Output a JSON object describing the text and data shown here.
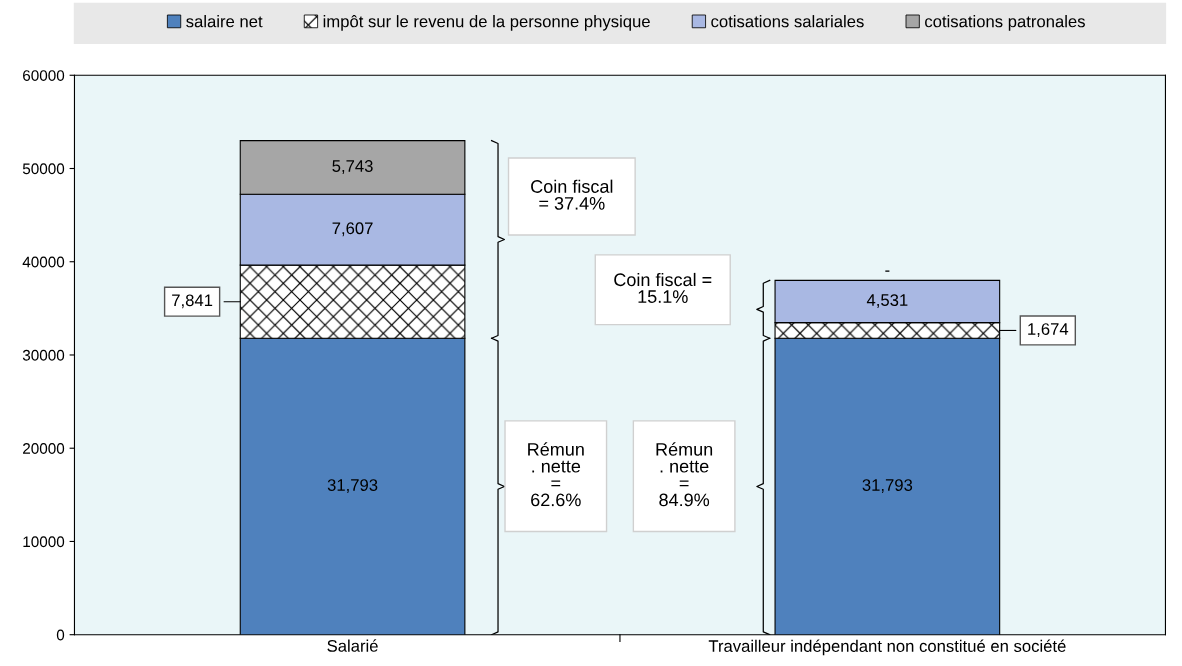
{
  "chart_data": {
    "type": "bar",
    "stacked": true,
    "categories": [
      "Salarié",
      "Travailleur indépendant non constitué en société"
    ],
    "series": [
      {
        "name": "salaire net",
        "color": "#4f81bd",
        "values": [
          31793,
          31793
        ],
        "value_labels": [
          "31,793",
          "31,793"
        ]
      },
      {
        "name": "impôt sur le revenu de la personne physique",
        "color": "#000000",
        "values": [
          7841,
          1674
        ],
        "value_labels": [
          "7,841",
          "1,674"
        ]
      },
      {
        "name": "cotisations salariales",
        "color": "#a9b8e3",
        "values": [
          7607,
          4531
        ],
        "value_labels": [
          "7,607",
          "4,531"
        ]
      },
      {
        "name": "cotisations patronales",
        "color": "#a6a6a6",
        "values": [
          5743,
          0
        ],
        "value_labels": [
          "5,743",
          "-"
        ]
      }
    ],
    "ylim": [
      0,
      60000
    ],
    "yticks": [
      0,
      10000,
      20000,
      30000,
      40000,
      50000,
      60000
    ],
    "grid": false,
    "legend": "top",
    "annotations": [
      "Coin fiscal\n= 37.4%",
      "Coin fiscal =\n15.1%",
      "Rémun\n. nette\n=\n62.6%",
      "Rémun\n. nette\n=\n84.9%"
    ]
  }
}
